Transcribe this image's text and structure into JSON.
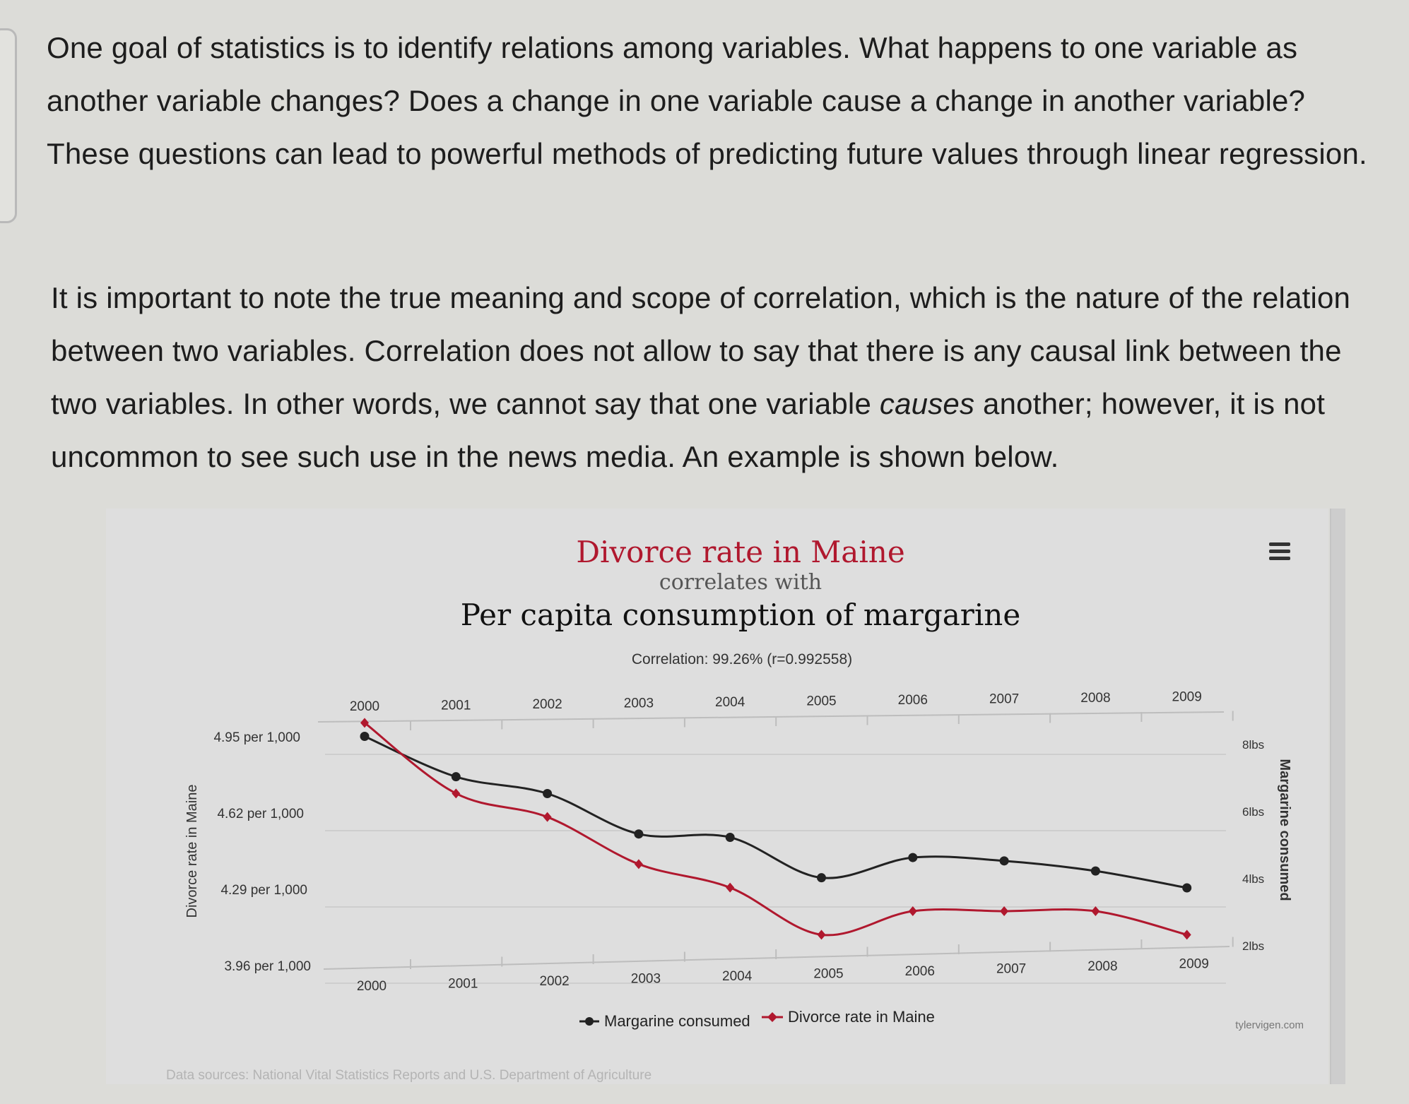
{
  "paragraphs": {
    "p1": "One goal of statistics is to identify relations among variables. What happens to one variable as another variable changes? Does a change in one variable cause a change in another variable? These questions can lead to powerful methods of predicting future values through linear regression.",
    "p2_before": "It is important to note the true meaning and scope of correlation, which is the nature of the relation between two variables. Correlation does not allow to say that there is any causal link between the two variables. In other words, we cannot say that one variable ",
    "p2_em": "causes",
    "p2_after": " another; however, it is not uncommon to see such use in the news media. An example is shown below."
  },
  "chart": {
    "menu_icon": "hamburger-menu-icon"
  },
  "chart_data": {
    "type": "line",
    "title": "Divorce rate in Maine",
    "subtitle": "correlates with",
    "title2": "Per capita consumption of margarine",
    "correlation": "Correlation: 99.26% (r=0.992558)",
    "categories": [
      "2000",
      "2001",
      "2002",
      "2003",
      "2004",
      "2005",
      "2006",
      "2007",
      "2008",
      "2009"
    ],
    "ylabel_left": "Divorce rate in Maine",
    "ylabel_right": "Margarine consumed",
    "yticks_left": [
      "4.95 per 1,000",
      "4.62 per 1,000",
      "4.29 per 1,000",
      "3.96 per 1,000"
    ],
    "yticks_right": [
      "8lbs",
      "6lbs",
      "4lbs",
      "2lbs"
    ],
    "ylim_left": [
      3.96,
      4.95
    ],
    "ylim_right": [
      2,
      8
    ],
    "series": [
      {
        "name": "Margarine consumed",
        "axis": "right",
        "color": "#222222",
        "marker": "circle",
        "values": [
          8.2,
          7,
          6.5,
          5.3,
          5.2,
          4,
          4.6,
          4.5,
          4.2,
          3.7
        ]
      },
      {
        "name": "Divorce rate in Maine",
        "axis": "left",
        "color": "#b0182e",
        "marker": "diamond",
        "values": [
          5.0,
          4.7,
          4.6,
          4.4,
          4.3,
          4.1,
          4.2,
          4.2,
          4.2,
          4.1
        ]
      }
    ],
    "legend_position": "bottom-center",
    "source": "Data sources: National Vital Statistics Reports and U.S. Department of Agriculture",
    "credit": "tylervigen.com"
  }
}
